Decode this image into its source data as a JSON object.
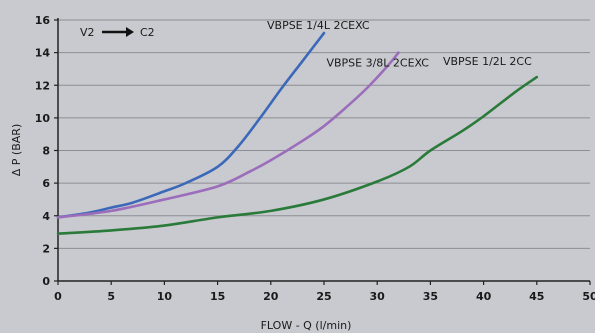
{
  "chart_data": {
    "type": "line",
    "title": "",
    "annotation": {
      "from": "V2",
      "to": "C2",
      "arrow": "right-arrow-icon"
    },
    "xlabel": "FLOW - Q (l/min)",
    "ylabel": "Δ P (BAR)",
    "xlim": [
      0,
      50
    ],
    "ylim": [
      0,
      16
    ],
    "xticks": [
      0,
      5,
      10,
      15,
      20,
      25,
      30,
      35,
      40,
      45,
      50
    ],
    "yticks": [
      0,
      2,
      4,
      6,
      8,
      10,
      12,
      14,
      16
    ],
    "grid": "horizontal",
    "legend": "inline labels near line ends",
    "series": [
      {
        "name": "VBPSE 1/4L 2CEXC",
        "color": "#3b68b8",
        "x": [
          0,
          3,
          5,
          7,
          10,
          12,
          15,
          17,
          19,
          21,
          23,
          25
        ],
        "y": [
          3.9,
          4.2,
          4.5,
          4.8,
          5.5,
          6.0,
          7.0,
          8.3,
          10.0,
          11.8,
          13.5,
          15.2
        ]
      },
      {
        "name": "VBPSE 3/8L 2CEXC",
        "color": "#9b6dbb",
        "x": [
          0,
          5,
          10,
          15,
          18,
          20,
          23,
          25,
          27,
          29,
          31,
          32
        ],
        "y": [
          3.9,
          4.3,
          5.0,
          5.8,
          6.7,
          7.4,
          8.6,
          9.5,
          10.6,
          11.8,
          13.2,
          14.0
        ]
      },
      {
        "name": "VBPSE 1/2L 2CC",
        "color": "#2a7a3a",
        "x": [
          0,
          5,
          10,
          15,
          20,
          25,
          30,
          33,
          35,
          38,
          40,
          43,
          45
        ],
        "y": [
          2.9,
          3.1,
          3.4,
          3.9,
          4.3,
          5.0,
          6.1,
          7.0,
          8.0,
          9.2,
          10.1,
          11.6,
          12.5
        ]
      }
    ],
    "series_label_positions": [
      "above-end",
      "right-of-end",
      "above-end"
    ]
  }
}
